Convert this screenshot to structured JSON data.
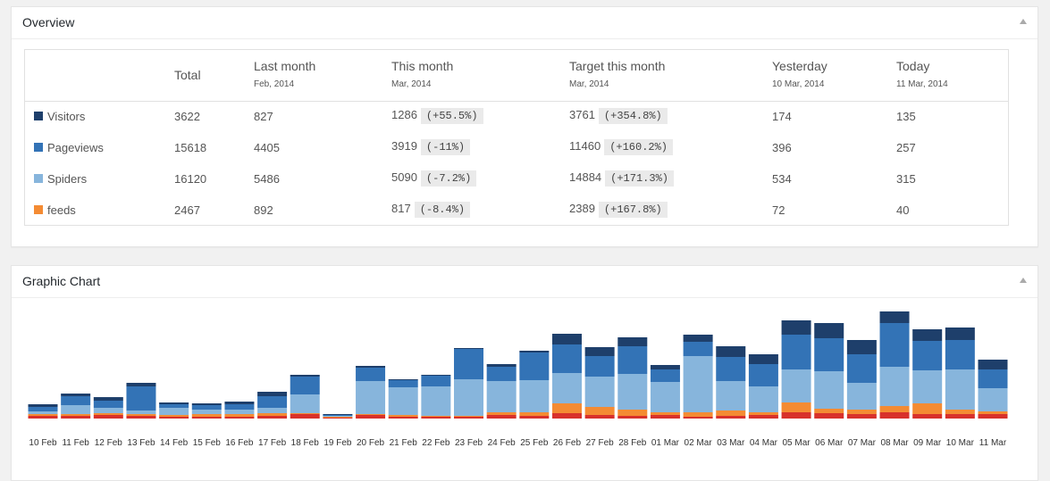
{
  "overview": {
    "title": "Overview",
    "columns": [
      {
        "label": "Total"
      },
      {
        "label": "Last month",
        "sub": "Feb, 2014"
      },
      {
        "label": "This month",
        "sub": "Mar, 2014"
      },
      {
        "label": "Target this month",
        "sub": "Mar, 2014"
      },
      {
        "label": "Yesterday",
        "sub": "10 Mar, 2014"
      },
      {
        "label": "Today",
        "sub": "11 Mar, 2014"
      }
    ],
    "rows": [
      {
        "label": "Visitors",
        "color": "#1e3f6b",
        "cells": [
          {
            "value": 3622
          },
          {
            "value": 827
          },
          {
            "value": 1286,
            "change": "(+55.5%)"
          },
          {
            "value": 3761,
            "change": "(+354.8%)"
          },
          {
            "value": 174
          },
          {
            "value": 135
          }
        ]
      },
      {
        "label": "Pageviews",
        "color": "#3373b6",
        "cells": [
          {
            "value": 15618
          },
          {
            "value": 4405
          },
          {
            "value": 3919,
            "change": "(-11%)"
          },
          {
            "value": 11460,
            "change": "(+160.2%)"
          },
          {
            "value": 396
          },
          {
            "value": 257
          }
        ]
      },
      {
        "label": "Spiders",
        "color": "#87b5dc",
        "cells": [
          {
            "value": 16120
          },
          {
            "value": 5486
          },
          {
            "value": 5090,
            "change": "(-7.2%)"
          },
          {
            "value": 14884,
            "change": "(+171.3%)"
          },
          {
            "value": 534
          },
          {
            "value": 315
          }
        ]
      },
      {
        "label": "feeds",
        "color": "#f48b33",
        "cells": [
          {
            "value": 2467
          },
          {
            "value": 892
          },
          {
            "value": 817,
            "change": "(-8.4%)"
          },
          {
            "value": 2389,
            "change": "(+167.8%)"
          },
          {
            "value": 72
          },
          {
            "value": 40
          }
        ]
      }
    ]
  },
  "graphic": {
    "title": "Graphic Chart",
    "chart_data": {
      "type": "stacked_bar",
      "categories": [
        "10 Feb",
        "11 Feb",
        "12 Feb",
        "13 Feb",
        "14 Feb",
        "15 Feb",
        "16 Feb",
        "17 Feb",
        "18 Feb",
        "19 Feb",
        "20 Feb",
        "21 Feb",
        "22 Feb",
        "23 Feb",
        "24 Feb",
        "25 Feb",
        "26 Feb",
        "27 Feb",
        "28 Feb",
        "01 Mar",
        "02 Mar",
        "03 Mar",
        "04 Mar",
        "05 Mar",
        "06 Mar",
        "07 Mar",
        "08 Mar",
        "09 Mar",
        "10 Mar",
        "11 Mar"
      ],
      "series": [
        {
          "color": "#d8312b",
          "values": [
            3,
            3,
            4,
            3,
            2,
            2,
            2,
            3,
            5,
            1,
            4,
            2,
            2,
            2,
            4,
            3,
            6,
            4,
            3,
            4,
            2,
            3,
            4,
            7,
            6,
            5,
            7,
            5,
            5,
            5
          ]
        },
        {
          "color": "#f48b33",
          "values": [
            2,
            2,
            2,
            2,
            2,
            3,
            3,
            3,
            1,
            1,
            1,
            2,
            1,
            1,
            3,
            4,
            11,
            9,
            7,
            3,
            5,
            6,
            3,
            11,
            5,
            5,
            7,
            12,
            5,
            3
          ]
        },
        {
          "color": "#87b5dc",
          "values": [
            3,
            10,
            6,
            4,
            8,
            5,
            5,
            6,
            21,
            1,
            37,
            31,
            33,
            41,
            35,
            36,
            34,
            34,
            40,
            34,
            63,
            33,
            29,
            37,
            42,
            30,
            44,
            37,
            45,
            26
          ]
        },
        {
          "color": "#3373b6",
          "values": [
            5,
            10,
            8,
            27,
            4,
            5,
            6,
            13,
            20,
            1,
            15,
            8,
            12,
            34,
            16,
            31,
            32,
            23,
            31,
            14,
            16,
            27,
            25,
            39,
            37,
            32,
            49,
            33,
            33,
            21
          ]
        },
        {
          "color": "#1e3f6b",
          "values": [
            3,
            3,
            4,
            4,
            2,
            2,
            3,
            5,
            2,
            1,
            2,
            1,
            1,
            1,
            3,
            2,
            12,
            10,
            10,
            5,
            8,
            12,
            11,
            16,
            17,
            16,
            13,
            13,
            14,
            11
          ]
        }
      ]
    }
  }
}
